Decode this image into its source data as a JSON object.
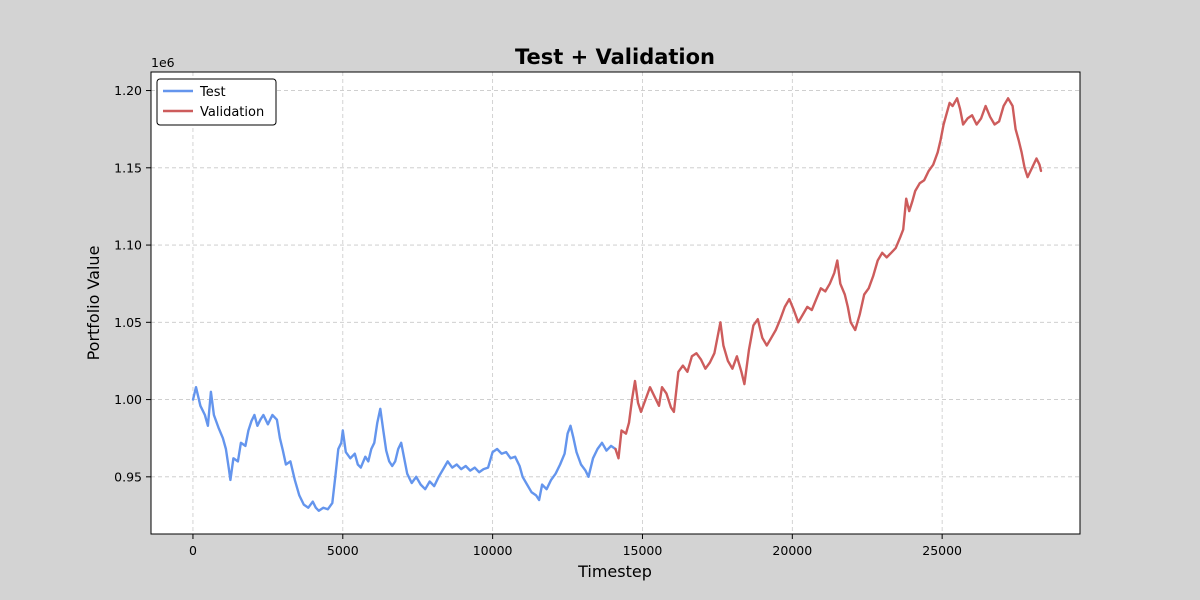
{
  "chart_data": {
    "type": "line",
    "title": "Test + Validation",
    "xlabel": "Timestep",
    "ylabel": "Portfolio Value",
    "y_offset_label": "1e6",
    "xlim": [
      -1400,
      29600
    ],
    "ylim": [
      913000,
      1212000
    ],
    "x_ticks": [
      0,
      5000,
      10000,
      15000,
      20000,
      25000
    ],
    "x_tick_labels": [
      "0",
      "5000",
      "10000",
      "15000",
      "20000",
      "25000"
    ],
    "y_ticks": [
      950000,
      1000000,
      1050000,
      1100000,
      1150000,
      1200000
    ],
    "y_tick_labels": [
      "0.95",
      "1.00",
      "1.05",
      "1.10",
      "1.15",
      "1.20"
    ],
    "grid": true,
    "legend_position": "top-left",
    "series": [
      {
        "name": "Test",
        "color": "#6495ed",
        "points": [
          [
            0,
            1000000
          ],
          [
            100,
            1008000
          ],
          [
            250,
            996000
          ],
          [
            400,
            990000
          ],
          [
            500,
            983000
          ],
          [
            600,
            1005000
          ],
          [
            700,
            990000
          ],
          [
            850,
            982000
          ],
          [
            1000,
            975000
          ],
          [
            1100,
            968000
          ],
          [
            1200,
            955000
          ],
          [
            1250,
            948000
          ],
          [
            1350,
            962000
          ],
          [
            1500,
            960000
          ],
          [
            1600,
            972000
          ],
          [
            1750,
            970000
          ],
          [
            1850,
            980000
          ],
          [
            1950,
            986000
          ],
          [
            2050,
            990000
          ],
          [
            2150,
            983000
          ],
          [
            2250,
            987000
          ],
          [
            2350,
            990000
          ],
          [
            2500,
            984000
          ],
          [
            2650,
            990000
          ],
          [
            2800,
            987000
          ],
          [
            2900,
            975000
          ],
          [
            3000,
            967000
          ],
          [
            3100,
            958000
          ],
          [
            3250,
            960000
          ],
          [
            3400,
            948000
          ],
          [
            3550,
            938000
          ],
          [
            3700,
            932000
          ],
          [
            3850,
            930000
          ],
          [
            4000,
            934000
          ],
          [
            4100,
            930000
          ],
          [
            4200,
            928000
          ],
          [
            4350,
            930000
          ],
          [
            4500,
            929000
          ],
          [
            4650,
            933000
          ],
          [
            4750,
            950000
          ],
          [
            4850,
            968000
          ],
          [
            4950,
            972000
          ],
          [
            5000,
            980000
          ],
          [
            5100,
            966000
          ],
          [
            5250,
            962000
          ],
          [
            5400,
            965000
          ],
          [
            5500,
            958000
          ],
          [
            5600,
            956000
          ],
          [
            5750,
            963000
          ],
          [
            5850,
            960000
          ],
          [
            5950,
            968000
          ],
          [
            6050,
            972000
          ],
          [
            6150,
            985000
          ],
          [
            6250,
            994000
          ],
          [
            6350,
            980000
          ],
          [
            6450,
            967000
          ],
          [
            6550,
            960000
          ],
          [
            6650,
            957000
          ],
          [
            6750,
            960000
          ],
          [
            6850,
            968000
          ],
          [
            6950,
            972000
          ],
          [
            7050,
            962000
          ],
          [
            7150,
            952000
          ],
          [
            7300,
            946000
          ],
          [
            7450,
            950000
          ],
          [
            7600,
            945000
          ],
          [
            7750,
            942000
          ],
          [
            7900,
            947000
          ],
          [
            8050,
            944000
          ],
          [
            8200,
            950000
          ],
          [
            8350,
            955000
          ],
          [
            8500,
            960000
          ],
          [
            8650,
            956000
          ],
          [
            8800,
            958000
          ],
          [
            8950,
            955000
          ],
          [
            9100,
            957000
          ],
          [
            9250,
            954000
          ],
          [
            9400,
            956000
          ],
          [
            9550,
            953000
          ],
          [
            9700,
            955000
          ],
          [
            9850,
            956000
          ],
          [
            10000,
            966000
          ],
          [
            10150,
            968000
          ],
          [
            10300,
            965000
          ],
          [
            10450,
            966000
          ],
          [
            10600,
            962000
          ],
          [
            10750,
            963000
          ],
          [
            10900,
            957000
          ],
          [
            11000,
            950000
          ],
          [
            11150,
            945000
          ],
          [
            11300,
            940000
          ],
          [
            11450,
            938000
          ],
          [
            11550,
            935000
          ],
          [
            11650,
            945000
          ],
          [
            11800,
            942000
          ],
          [
            11950,
            948000
          ],
          [
            12100,
            952000
          ],
          [
            12250,
            958000
          ],
          [
            12400,
            965000
          ],
          [
            12500,
            978000
          ],
          [
            12600,
            983000
          ],
          [
            12700,
            975000
          ],
          [
            12800,
            966000
          ],
          [
            12950,
            958000
          ],
          [
            13100,
            954000
          ],
          [
            13200,
            950000
          ],
          [
            13350,
            962000
          ],
          [
            13500,
            968000
          ],
          [
            13650,
            972000
          ],
          [
            13800,
            967000
          ],
          [
            13950,
            970000
          ],
          [
            14100,
            968000
          ]
        ]
      },
      {
        "name": "Validation",
        "color": "#cd5c5c",
        "points": [
          [
            14100,
            968000
          ],
          [
            14200,
            962000
          ],
          [
            14300,
            980000
          ],
          [
            14450,
            978000
          ],
          [
            14550,
            985000
          ],
          [
            14650,
            1000000
          ],
          [
            14750,
            1012000
          ],
          [
            14850,
            998000
          ],
          [
            14950,
            992000
          ],
          [
            15100,
            1000000
          ],
          [
            15250,
            1008000
          ],
          [
            15400,
            1002000
          ],
          [
            15550,
            996000
          ],
          [
            15650,
            1008000
          ],
          [
            15800,
            1004000
          ],
          [
            15950,
            995000
          ],
          [
            16050,
            992000
          ],
          [
            16200,
            1018000
          ],
          [
            16350,
            1022000
          ],
          [
            16500,
            1018000
          ],
          [
            16650,
            1028000
          ],
          [
            16800,
            1030000
          ],
          [
            16950,
            1026000
          ],
          [
            17100,
            1020000
          ],
          [
            17250,
            1024000
          ],
          [
            17400,
            1030000
          ],
          [
            17500,
            1040000
          ],
          [
            17600,
            1050000
          ],
          [
            17700,
            1035000
          ],
          [
            17850,
            1025000
          ],
          [
            18000,
            1020000
          ],
          [
            18150,
            1028000
          ],
          [
            18300,
            1018000
          ],
          [
            18400,
            1010000
          ],
          [
            18550,
            1032000
          ],
          [
            18700,
            1048000
          ],
          [
            18850,
            1052000
          ],
          [
            19000,
            1040000
          ],
          [
            19150,
            1035000
          ],
          [
            19300,
            1040000
          ],
          [
            19450,
            1045000
          ],
          [
            19600,
            1052000
          ],
          [
            19750,
            1060000
          ],
          [
            19900,
            1065000
          ],
          [
            20050,
            1058000
          ],
          [
            20200,
            1050000
          ],
          [
            20350,
            1055000
          ],
          [
            20500,
            1060000
          ],
          [
            20650,
            1058000
          ],
          [
            20800,
            1065000
          ],
          [
            20950,
            1072000
          ],
          [
            21100,
            1070000
          ],
          [
            21250,
            1075000
          ],
          [
            21400,
            1082000
          ],
          [
            21500,
            1090000
          ],
          [
            21600,
            1075000
          ],
          [
            21750,
            1068000
          ],
          [
            21850,
            1060000
          ],
          [
            21950,
            1050000
          ],
          [
            22100,
            1045000
          ],
          [
            22250,
            1055000
          ],
          [
            22400,
            1068000
          ],
          [
            22550,
            1072000
          ],
          [
            22700,
            1080000
          ],
          [
            22850,
            1090000
          ],
          [
            23000,
            1095000
          ],
          [
            23150,
            1092000
          ],
          [
            23300,
            1095000
          ],
          [
            23450,
            1098000
          ],
          [
            23600,
            1105000
          ],
          [
            23700,
            1110000
          ],
          [
            23800,
            1130000
          ],
          [
            23900,
            1122000
          ],
          [
            24000,
            1128000
          ],
          [
            24100,
            1135000
          ],
          [
            24250,
            1140000
          ],
          [
            24400,
            1142000
          ],
          [
            24550,
            1148000
          ],
          [
            24700,
            1152000
          ],
          [
            24850,
            1160000
          ],
          [
            24950,
            1168000
          ],
          [
            25050,
            1178000
          ],
          [
            25150,
            1185000
          ],
          [
            25250,
            1192000
          ],
          [
            25350,
            1190000
          ],
          [
            25500,
            1195000
          ],
          [
            25600,
            1188000
          ],
          [
            25700,
            1178000
          ],
          [
            25850,
            1182000
          ],
          [
            26000,
            1184000
          ],
          [
            26150,
            1178000
          ],
          [
            26300,
            1182000
          ],
          [
            26450,
            1190000
          ],
          [
            26600,
            1183000
          ],
          [
            26750,
            1178000
          ],
          [
            26900,
            1180000
          ],
          [
            27050,
            1190000
          ],
          [
            27200,
            1195000
          ],
          [
            27350,
            1190000
          ],
          [
            27450,
            1175000
          ],
          [
            27550,
            1168000
          ],
          [
            27650,
            1160000
          ],
          [
            27750,
            1150000
          ],
          [
            27850,
            1144000
          ],
          [
            27950,
            1148000
          ],
          [
            28050,
            1152000
          ],
          [
            28150,
            1156000
          ],
          [
            28250,
            1152000
          ],
          [
            28300,
            1148000
          ]
        ]
      }
    ]
  }
}
